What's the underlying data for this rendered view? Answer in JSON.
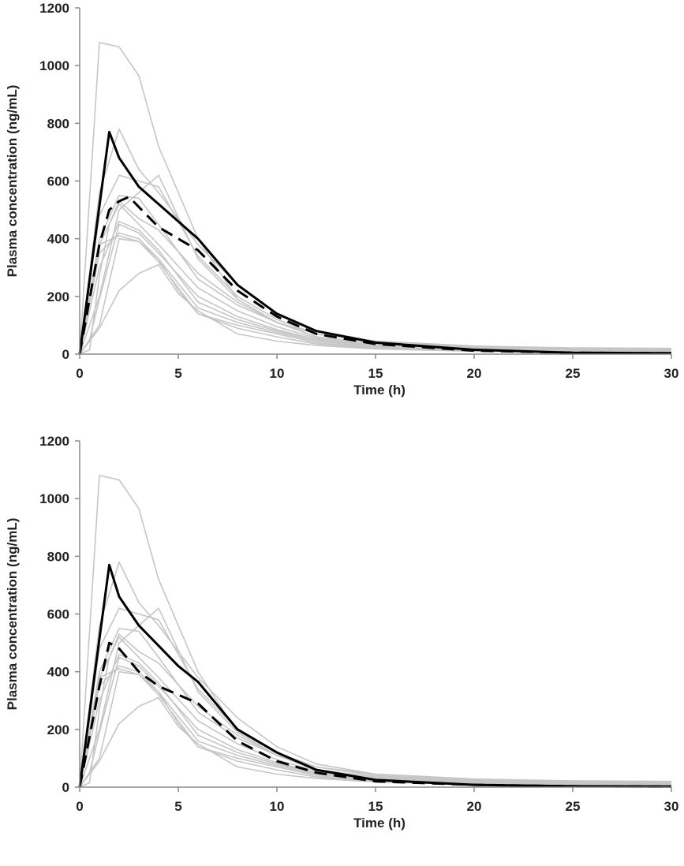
{
  "chart_data": [
    {
      "type": "line",
      "title": "",
      "xlabel": "Time (h)",
      "ylabel": "Plasma concentration (ng/mL)",
      "xlim": [
        0,
        30
      ],
      "ylim": [
        0,
        1200
      ],
      "x_ticks": [
        0,
        5,
        10,
        15,
        20,
        25,
        30
      ],
      "y_ticks": [
        0,
        200,
        400,
        600,
        800,
        1000,
        1200
      ],
      "grid": false,
      "colors": {
        "individual": "#c6c6c6",
        "mean_solid": "#000000",
        "mean_dashed": "#000000",
        "axis": "#8a8a8a"
      },
      "series": [
        {
          "style": "individual",
          "x": [
            0,
            1,
            2,
            3,
            4,
            6,
            8,
            10,
            12,
            15,
            20,
            25,
            30
          ],
          "y": [
            0,
            1080,
            1065,
            965,
            720,
            400,
            190,
            110,
            70,
            45,
            28,
            22,
            20
          ]
        },
        {
          "style": "individual",
          "x": [
            0,
            1,
            2,
            3,
            4,
            6,
            8,
            10,
            12,
            15,
            20,
            25,
            30
          ],
          "y": [
            0,
            560,
            780,
            640,
            560,
            380,
            240,
            140,
            80,
            45,
            28,
            20,
            18
          ]
        },
        {
          "style": "individual",
          "x": [
            0,
            1,
            2,
            3,
            4,
            6,
            8,
            10,
            12,
            15,
            20,
            25,
            30
          ],
          "y": [
            0,
            480,
            620,
            600,
            580,
            340,
            200,
            120,
            70,
            40,
            25,
            18,
            15
          ]
        },
        {
          "style": "individual",
          "x": [
            0,
            1,
            2,
            3,
            4,
            6,
            8,
            10,
            12,
            15,
            20,
            25,
            30
          ],
          "y": [
            0,
            200,
            500,
            560,
            620,
            330,
            190,
            110,
            60,
            35,
            22,
            16,
            14
          ]
        },
        {
          "style": "individual",
          "x": [
            0,
            1,
            2,
            3,
            4,
            6,
            8,
            10,
            12,
            15,
            20,
            25,
            30
          ],
          "y": [
            0,
            400,
            550,
            540,
            450,
            260,
            170,
            110,
            60,
            35,
            22,
            16,
            12
          ]
        },
        {
          "style": "individual",
          "x": [
            0,
            1,
            2,
            3,
            4,
            6,
            8,
            10,
            12,
            15,
            20,
            25,
            30
          ],
          "y": [
            0,
            380,
            520,
            450,
            380,
            230,
            150,
            95,
            55,
            30,
            20,
            14,
            12
          ]
        },
        {
          "style": "individual",
          "x": [
            0,
            1,
            2,
            3,
            4,
            6,
            8,
            10,
            12,
            15,
            20,
            25,
            30
          ],
          "y": [
            0,
            300,
            460,
            430,
            360,
            180,
            120,
            80,
            50,
            30,
            18,
            12,
            10
          ]
        },
        {
          "style": "individual",
          "x": [
            0,
            1,
            2,
            3,
            4,
            6,
            8,
            10,
            12,
            15,
            20,
            25,
            30
          ],
          "y": [
            0,
            350,
            420,
            400,
            330,
            160,
            110,
            75,
            45,
            25,
            15,
            10,
            8
          ]
        },
        {
          "style": "individual",
          "x": [
            0,
            1,
            2,
            3,
            4,
            6,
            8,
            10,
            12,
            15,
            20,
            25,
            30
          ],
          "y": [
            0,
            380,
            410,
            390,
            320,
            140,
            100,
            70,
            40,
            22,
            12,
            8,
            6
          ]
        },
        {
          "style": "individual",
          "x": [
            0,
            1,
            2,
            3,
            4,
            5,
            6,
            8,
            10,
            12,
            15,
            20,
            25,
            30
          ],
          "y": [
            0,
            100,
            400,
            390,
            330,
            220,
            140,
            90,
            60,
            35,
            20,
            12,
            8,
            6
          ]
        },
        {
          "style": "individual",
          "x": [
            0,
            1,
            2,
            3,
            4,
            5,
            6,
            8,
            10,
            12,
            15,
            20,
            25,
            30
          ],
          "y": [
            0,
            90,
            220,
            280,
            310,
            210,
            150,
            70,
            45,
            30,
            18,
            10,
            6,
            4
          ]
        },
        {
          "style": "individual",
          "x": [
            0,
            0.5,
            1,
            2,
            3,
            4,
            6,
            8,
            10,
            12,
            15,
            20,
            25,
            30
          ],
          "y": [
            0,
            50,
            190,
            450,
            420,
            350,
            200,
            130,
            85,
            50,
            28,
            15,
            10,
            8
          ]
        },
        {
          "style": "individual",
          "x": [
            0,
            0.5,
            1,
            1.5,
            2,
            3,
            4,
            6,
            8,
            10,
            12,
            15,
            20,
            25,
            30
          ],
          "y": [
            0,
            15,
            270,
            450,
            530,
            470,
            430,
            280,
            180,
            110,
            60,
            35,
            20,
            14,
            12
          ]
        },
        {
          "style": "mean_solid",
          "x": [
            0,
            1.5,
            2,
            3,
            4,
            5,
            6,
            8,
            10,
            12,
            15,
            20,
            25,
            30
          ],
          "y": [
            0,
            770,
            680,
            580,
            520,
            460,
            400,
            240,
            140,
            80,
            40,
            15,
            5,
            3
          ]
        },
        {
          "style": "mean_dashed",
          "x": [
            0,
            1,
            1.5,
            2,
            2.5,
            3,
            4,
            5,
            6,
            8,
            10,
            12,
            15,
            20,
            25,
            30
          ],
          "y": [
            0,
            380,
            500,
            530,
            545,
            510,
            440,
            400,
            360,
            220,
            130,
            70,
            35,
            12,
            5,
            3
          ]
        }
      ]
    },
    {
      "type": "line",
      "title": "",
      "xlabel": "Time (h)",
      "ylabel": "Plasma concentration (ng/mL)",
      "xlim": [
        0,
        30
      ],
      "ylim": [
        0,
        1200
      ],
      "x_ticks": [
        0,
        5,
        10,
        15,
        20,
        25,
        30
      ],
      "y_ticks": [
        0,
        200,
        400,
        600,
        800,
        1000,
        1200
      ],
      "grid": false,
      "colors": {
        "individual": "#c6c6c6",
        "mean_solid": "#000000",
        "mean_dashed": "#000000",
        "axis": "#8a8a8a"
      },
      "series": [
        {
          "style": "individual",
          "x": [
            0,
            1,
            2,
            3,
            4,
            6,
            8,
            10,
            12,
            15,
            20,
            25,
            30
          ],
          "y": [
            0,
            1080,
            1065,
            965,
            720,
            400,
            190,
            110,
            70,
            45,
            28,
            22,
            20
          ]
        },
        {
          "style": "individual",
          "x": [
            0,
            1,
            2,
            3,
            4,
            6,
            8,
            10,
            12,
            15,
            20,
            25,
            30
          ],
          "y": [
            0,
            560,
            780,
            640,
            560,
            380,
            240,
            140,
            80,
            45,
            28,
            20,
            18
          ]
        },
        {
          "style": "individual",
          "x": [
            0,
            1,
            2,
            3,
            4,
            6,
            8,
            10,
            12,
            15,
            20,
            25,
            30
          ],
          "y": [
            0,
            480,
            620,
            600,
            580,
            340,
            200,
            120,
            70,
            40,
            25,
            18,
            15
          ]
        },
        {
          "style": "individual",
          "x": [
            0,
            1,
            2,
            3,
            4,
            6,
            8,
            10,
            12,
            15,
            20,
            25,
            30
          ],
          "y": [
            0,
            200,
            500,
            560,
            620,
            330,
            190,
            110,
            60,
            35,
            22,
            16,
            14
          ]
        },
        {
          "style": "individual",
          "x": [
            0,
            1,
            2,
            3,
            4,
            6,
            8,
            10,
            12,
            15,
            20,
            25,
            30
          ],
          "y": [
            0,
            400,
            550,
            540,
            450,
            260,
            170,
            110,
            60,
            35,
            22,
            16,
            12
          ]
        },
        {
          "style": "individual",
          "x": [
            0,
            1,
            2,
            3,
            4,
            6,
            8,
            10,
            12,
            15,
            20,
            25,
            30
          ],
          "y": [
            0,
            380,
            520,
            450,
            380,
            230,
            150,
            95,
            55,
            30,
            20,
            14,
            12
          ]
        },
        {
          "style": "individual",
          "x": [
            0,
            1,
            2,
            3,
            4,
            6,
            8,
            10,
            12,
            15,
            20,
            25,
            30
          ],
          "y": [
            0,
            300,
            460,
            430,
            360,
            180,
            120,
            80,
            50,
            30,
            18,
            12,
            10
          ]
        },
        {
          "style": "individual",
          "x": [
            0,
            1,
            2,
            3,
            4,
            6,
            8,
            10,
            12,
            15,
            20,
            25,
            30
          ],
          "y": [
            0,
            350,
            420,
            400,
            330,
            160,
            110,
            75,
            45,
            25,
            15,
            10,
            8
          ]
        },
        {
          "style": "individual",
          "x": [
            0,
            1,
            2,
            3,
            4,
            6,
            8,
            10,
            12,
            15,
            20,
            25,
            30
          ],
          "y": [
            0,
            380,
            410,
            390,
            320,
            140,
            100,
            70,
            40,
            22,
            12,
            8,
            6
          ]
        },
        {
          "style": "individual",
          "x": [
            0,
            1,
            2,
            3,
            4,
            5,
            6,
            8,
            10,
            12,
            15,
            20,
            25,
            30
          ],
          "y": [
            0,
            100,
            400,
            390,
            330,
            220,
            140,
            90,
            60,
            35,
            20,
            12,
            8,
            6
          ]
        },
        {
          "style": "individual",
          "x": [
            0,
            1,
            2,
            3,
            4,
            5,
            6,
            8,
            10,
            12,
            15,
            20,
            25,
            30
          ],
          "y": [
            0,
            90,
            220,
            280,
            310,
            210,
            150,
            70,
            45,
            30,
            18,
            10,
            6,
            4
          ]
        },
        {
          "style": "individual",
          "x": [
            0,
            0.5,
            1,
            2,
            3,
            4,
            6,
            8,
            10,
            12,
            15,
            20,
            25,
            30
          ],
          "y": [
            0,
            50,
            190,
            450,
            420,
            350,
            200,
            130,
            85,
            50,
            28,
            15,
            10,
            8
          ]
        },
        {
          "style": "individual",
          "x": [
            0,
            0.5,
            1,
            1.5,
            2,
            3,
            4,
            6,
            8,
            10,
            12,
            15,
            20,
            25,
            30
          ],
          "y": [
            0,
            15,
            270,
            450,
            530,
            470,
            430,
            280,
            180,
            110,
            60,
            35,
            20,
            14,
            12
          ]
        },
        {
          "style": "mean_solid",
          "x": [
            0,
            1.5,
            2,
            3,
            4,
            5,
            6,
            8,
            10,
            12,
            15,
            20,
            25,
            30
          ],
          "y": [
            0,
            770,
            660,
            560,
            490,
            420,
            365,
            200,
            120,
            60,
            25,
            8,
            3,
            2
          ]
        },
        {
          "style": "mean_dashed",
          "x": [
            0,
            1,
            1.5,
            2,
            3,
            4,
            5,
            6,
            8,
            10,
            12,
            15,
            20,
            25,
            30
          ],
          "y": [
            0,
            350,
            500,
            480,
            400,
            350,
            320,
            290,
            160,
            90,
            50,
            20,
            8,
            3,
            2
          ]
        }
      ]
    }
  ]
}
